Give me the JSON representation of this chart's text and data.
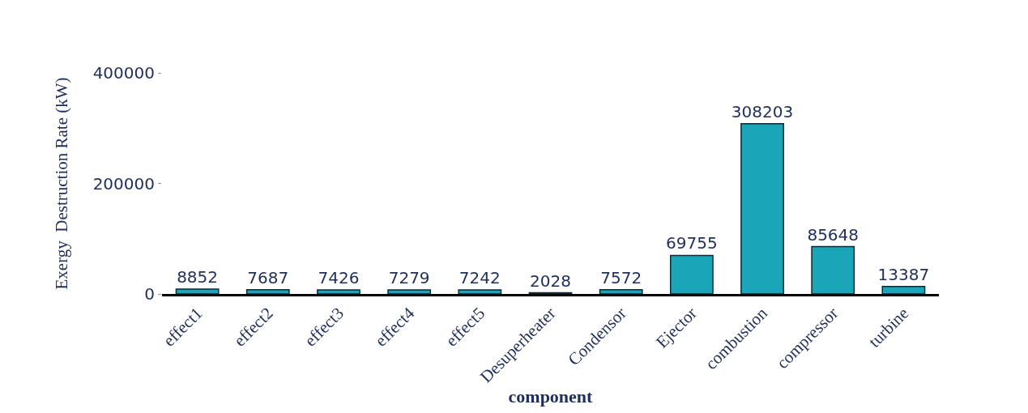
{
  "chart_data": {
    "type": "bar",
    "xlabel": "component",
    "ylabel": "Exergy  Destruction Rate (kW)",
    "categories": [
      "effect1",
      "effect2",
      "effect3",
      "effect4",
      "effect5",
      "Desuperheater",
      "Condensor",
      "Ejector",
      "combustion",
      "compressor",
      "turbine"
    ],
    "values": [
      8852,
      7687,
      7426,
      7279,
      7242,
      2028,
      7572,
      69755,
      308203,
      85648,
      13387
    ],
    "color": "#1ba5b8",
    "ylim": [
      0,
      400000
    ],
    "yticks": [
      0,
      200000,
      400000
    ],
    "grid": false,
    "data_labels": true
  }
}
